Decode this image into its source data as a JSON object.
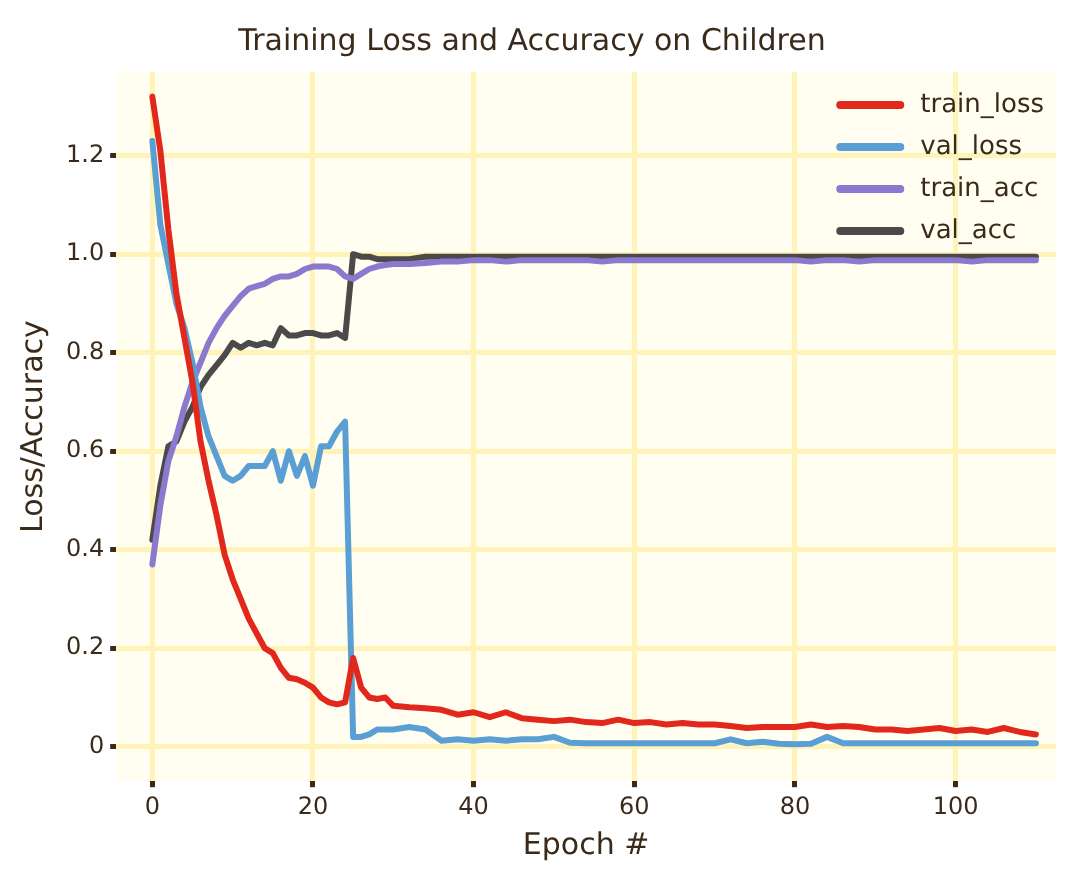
{
  "chart_data": {
    "type": "line",
    "title": "Training Loss and Accuracy on Children",
    "xlabel": "Epoch #",
    "ylabel": "Loss/Accuracy",
    "x": [
      0,
      1,
      2,
      3,
      4,
      5,
      6,
      7,
      8,
      9,
      10,
      11,
      12,
      13,
      14,
      15,
      16,
      17,
      18,
      19,
      20,
      21,
      22,
      23,
      24,
      25,
      26,
      27,
      28,
      29,
      30,
      32,
      34,
      36,
      38,
      40,
      42,
      44,
      46,
      48,
      50,
      52,
      54,
      56,
      58,
      60,
      62,
      64,
      66,
      68,
      70,
      72,
      74,
      76,
      78,
      80,
      82,
      84,
      86,
      88,
      90,
      92,
      94,
      96,
      98,
      100,
      102,
      104,
      106,
      108,
      110
    ],
    "series": [
      {
        "name": "train_loss",
        "color": "#e2271c",
        "values": [
          1.32,
          1.21,
          1.05,
          0.92,
          0.83,
          0.74,
          0.62,
          0.54,
          0.47,
          0.39,
          0.34,
          0.3,
          0.26,
          0.23,
          0.2,
          0.19,
          0.16,
          0.14,
          0.137,
          0.13,
          0.12,
          0.1,
          0.09,
          0.086,
          0.09,
          0.18,
          0.12,
          0.1,
          0.097,
          0.1,
          0.083,
          0.08,
          0.078,
          0.075,
          0.065,
          0.07,
          0.06,
          0.07,
          0.058,
          0.055,
          0.052,
          0.055,
          0.05,
          0.048,
          0.055,
          0.048,
          0.05,
          0.045,
          0.048,
          0.045,
          0.045,
          0.042,
          0.038,
          0.04,
          0.04,
          0.04,
          0.045,
          0.04,
          0.042,
          0.04,
          0.035,
          0.035,
          0.032,
          0.035,
          0.038,
          0.032,
          0.035,
          0.03,
          0.038,
          0.03,
          0.025
        ]
      },
      {
        "name": "val_loss",
        "color": "#5a9fd4",
        "values": [
          1.23,
          1.06,
          0.98,
          0.9,
          0.85,
          0.78,
          0.69,
          0.63,
          0.59,
          0.55,
          0.54,
          0.55,
          0.57,
          0.57,
          0.57,
          0.6,
          0.54,
          0.6,
          0.55,
          0.59,
          0.53,
          0.61,
          0.61,
          0.64,
          0.66,
          0.02,
          0.02,
          0.025,
          0.035,
          0.035,
          0.035,
          0.04,
          0.035,
          0.012,
          0.015,
          0.012,
          0.015,
          0.012,
          0.015,
          0.015,
          0.02,
          0.008,
          0.007,
          0.007,
          0.007,
          0.007,
          0.007,
          0.007,
          0.007,
          0.007,
          0.007,
          0.015,
          0.007,
          0.01,
          0.006,
          0.005,
          0.006,
          0.02,
          0.007,
          0.007,
          0.007,
          0.007,
          0.007,
          0.007,
          0.007,
          0.007,
          0.007,
          0.007,
          0.007,
          0.007,
          0.007
        ]
      },
      {
        "name": "train_acc",
        "color": "#8a79cf",
        "values": [
          0.37,
          0.49,
          0.58,
          0.63,
          0.69,
          0.74,
          0.78,
          0.82,
          0.85,
          0.875,
          0.895,
          0.915,
          0.93,
          0.935,
          0.94,
          0.95,
          0.955,
          0.955,
          0.96,
          0.97,
          0.975,
          0.975,
          0.975,
          0.97,
          0.955,
          0.95,
          0.96,
          0.97,
          0.975,
          0.978,
          0.98,
          0.98,
          0.982,
          0.985,
          0.985,
          0.988,
          0.988,
          0.985,
          0.988,
          0.988,
          0.988,
          0.988,
          0.988,
          0.985,
          0.988,
          0.988,
          0.988,
          0.988,
          0.988,
          0.988,
          0.988,
          0.988,
          0.988,
          0.988,
          0.988,
          0.988,
          0.985,
          0.988,
          0.988,
          0.985,
          0.988,
          0.988,
          0.988,
          0.988,
          0.988,
          0.988,
          0.985,
          0.988,
          0.988,
          0.988,
          0.988
        ]
      },
      {
        "name": "val_acc",
        "color": "#4a4a4a",
        "values": [
          0.42,
          0.53,
          0.61,
          0.62,
          0.66,
          0.69,
          0.73,
          0.755,
          0.775,
          0.795,
          0.82,
          0.81,
          0.82,
          0.815,
          0.82,
          0.815,
          0.85,
          0.835,
          0.835,
          0.84,
          0.84,
          0.835,
          0.835,
          0.84,
          0.83,
          1.0,
          0.995,
          0.995,
          0.99,
          0.99,
          0.99,
          0.99,
          0.995,
          0.995,
          0.995,
          0.995,
          0.995,
          0.995,
          0.995,
          0.995,
          0.995,
          0.995,
          0.995,
          0.995,
          0.995,
          0.995,
          0.995,
          0.995,
          0.995,
          0.995,
          0.995,
          0.995,
          0.995,
          0.995,
          0.995,
          0.995,
          0.995,
          0.995,
          0.995,
          0.995,
          0.995,
          0.995,
          0.995,
          0.995,
          0.995,
          0.995,
          0.995,
          0.995,
          0.995,
          0.995,
          0.995
        ]
      }
    ],
    "xlim": [
      -4.5,
      112.5
    ],
    "xticks": [
      0,
      20,
      40,
      60,
      80,
      100
    ],
    "ylim": [
      -0.07,
      1.37
    ],
    "yticks": [
      0.0,
      {
        "value": 0.2,
        "label": "0.2"
      },
      {
        "value": 0.4,
        "label": "0.4"
      },
      {
        "value": 0.6,
        "label": "0.6"
      },
      {
        "value": 0.8,
        "label": "0.8"
      },
      {
        "value": 1.0,
        "label": "1.0"
      },
      {
        "value": 1.2,
        "label": "1.2"
      }
    ],
    "grid": true,
    "legend": "top right",
    "line_style": "solid",
    "marker": "none"
  }
}
